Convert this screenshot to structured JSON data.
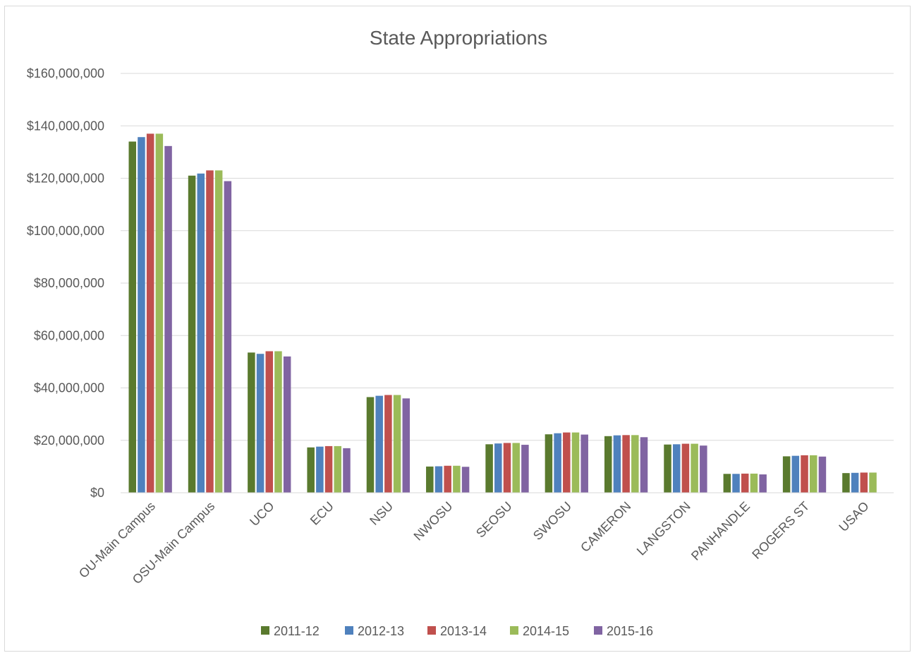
{
  "chart_data": {
    "type": "bar",
    "title": "State Appropriations",
    "xlabel": "",
    "ylabel": "",
    "ylim": [
      0,
      160000000
    ],
    "yticks": [
      "$0",
      "$20,000,000",
      "$40,000,000",
      "$60,000,000",
      "$80,000,000",
      "$100,000,000",
      "$120,000,000",
      "$140,000,000",
      "$160,000,000"
    ],
    "grid": true,
    "legend": "bottom",
    "categories": [
      "OU-Main Campus",
      "OSU-Main Campus",
      "UCO",
      "ECU",
      "NSU",
      "NWOSU",
      "SEOSU",
      "SWOSU",
      "CAMERON",
      "LANGSTON",
      "PANHANDLE",
      "ROGERS ST",
      "USAO"
    ],
    "series": [
      {
        "name": "2011-12",
        "color": "#5a7a2e",
        "values": [
          134000000,
          121000000,
          53500000,
          17300000,
          36500000,
          10000000,
          18500000,
          22300000,
          21600000,
          18400000,
          7200000,
          13900000,
          7500000
        ]
      },
      {
        "name": "2012-13",
        "color": "#4f81bd",
        "values": [
          135700000,
          121800000,
          53000000,
          17600000,
          37000000,
          10100000,
          18800000,
          22700000,
          21900000,
          18500000,
          7200000,
          14100000,
          7600000
        ]
      },
      {
        "name": "2013-14",
        "color": "#c0504d",
        "values": [
          137000000,
          123000000,
          54000000,
          17800000,
          37300000,
          10300000,
          19000000,
          23000000,
          22000000,
          18700000,
          7300000,
          14300000,
          7700000
        ]
      },
      {
        "name": "2014-15",
        "color": "#9bbb59",
        "values": [
          137000000,
          123000000,
          54000000,
          17800000,
          37300000,
          10300000,
          19000000,
          23000000,
          22000000,
          18700000,
          7300000,
          14300000,
          7700000
        ]
      },
      {
        "name": "2015-16",
        "color": "#8064a2",
        "values": [
          132300000,
          118900000,
          52000000,
          17000000,
          36000000,
          9900000,
          18300000,
          22200000,
          21200000,
          18000000,
          7000000,
          13800000,
          null
        ]
      }
    ]
  }
}
